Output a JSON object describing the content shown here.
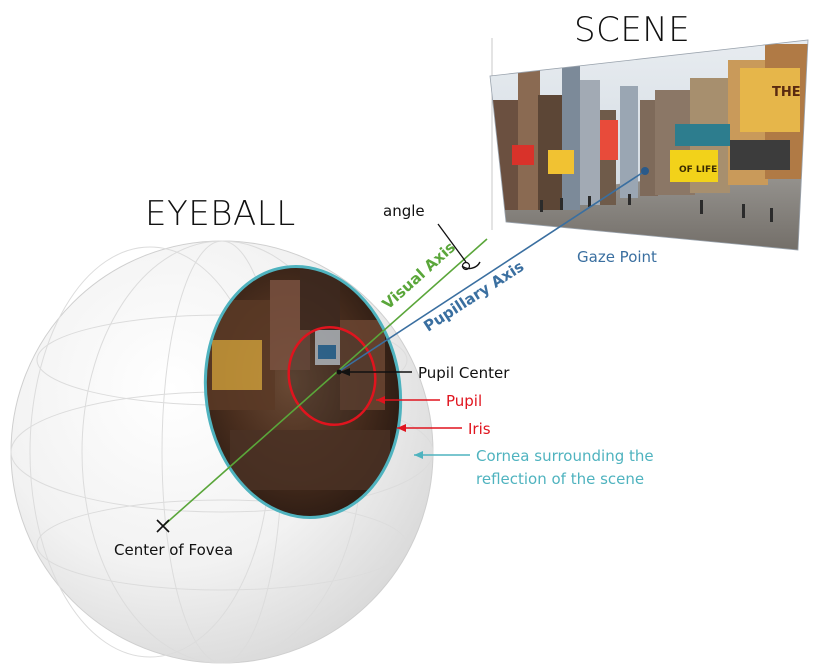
{
  "titles": {
    "scene": "SCENE",
    "eyeball": "EYEBALL"
  },
  "labels": {
    "angle": "angle",
    "visual_axis": "Visual Axis",
    "pupillary_axis": "Pupillary Axis",
    "gaze_point": "Gaze Point",
    "pupil_center": "Pupil Center",
    "pupil": "Pupil",
    "iris": "Iris",
    "cornea_line1": "Cornea surrounding the",
    "cornea_line2": "reflection of the scene",
    "fovea": "Center of Fovea",
    "billboard_the": "THE",
    "billboard_life": "OF LIFE"
  },
  "colors": {
    "visual_axis": "#5aa63a",
    "pupillary_axis": "#3a6fa0",
    "pupil": "#e0141e",
    "cornea": "#4fb3bf",
    "black": "#111111"
  }
}
